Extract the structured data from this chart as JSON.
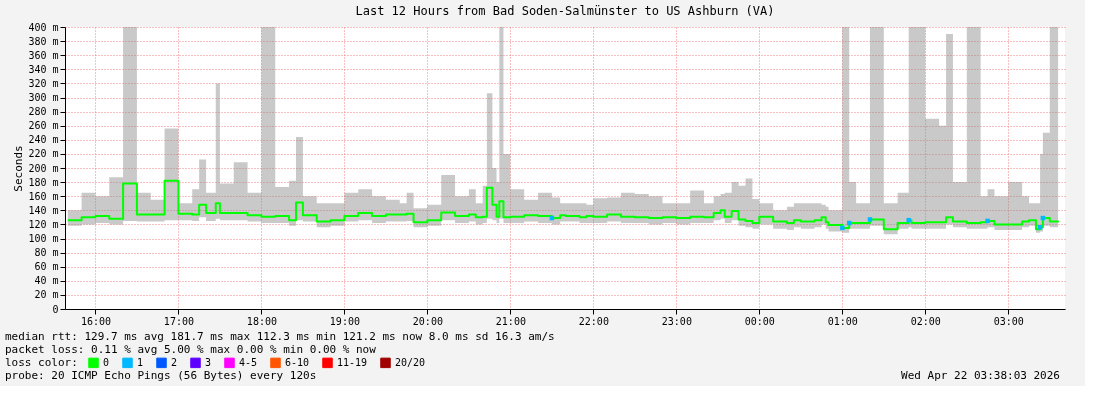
{
  "chart_data": {
    "type": "step",
    "title": "Last 12 Hours from Bad Soden-Salmünster to US Ashburn (VA)",
    "ylabel": "Seconds",
    "xlim": [
      "2026-04-21T15:38",
      "2026-04-22T03:41"
    ],
    "xticks": [
      {
        "value": "2026-04-21T16:00",
        "label": "16:00"
      },
      {
        "value": "2026-04-21T17:00",
        "label": "17:00"
      },
      {
        "value": "2026-04-21T18:00",
        "label": "18:00"
      },
      {
        "value": "2026-04-21T19:00",
        "label": "19:00"
      },
      {
        "value": "2026-04-21T20:00",
        "label": "20:00"
      },
      {
        "value": "2026-04-21T21:00",
        "label": "21:00"
      },
      {
        "value": "2026-04-21T22:00",
        "label": "22:00"
      },
      {
        "value": "2026-04-21T23:00",
        "label": "23:00"
      },
      {
        "value": "2026-04-22T00:00",
        "label": "00:00"
      },
      {
        "value": "2026-04-22T01:00",
        "label": "01:00"
      },
      {
        "value": "2026-04-22T02:00",
        "label": "02:00"
      },
      {
        "value": "2026-04-22T03:00",
        "label": "03:00"
      }
    ],
    "ylim": [
      0,
      400
    ],
    "yticks": [
      0,
      {
        "value": 20,
        "label": "20 m"
      },
      {
        "value": 40,
        "label": "40 m"
      },
      {
        "value": 60,
        "label": "60 m"
      },
      {
        "value": 80,
        "label": "80 m"
      },
      {
        "value": 100,
        "label": "100 m"
      },
      {
        "value": 120,
        "label": "120 m"
      },
      {
        "value": 140,
        "label": "140 m"
      },
      {
        "value": 160,
        "label": "160 m"
      },
      {
        "value": 180,
        "label": "180 m"
      },
      {
        "value": 200,
        "label": "200 m"
      },
      {
        "value": 220,
        "label": "220 m"
      },
      {
        "value": 240,
        "label": "240 m"
      },
      {
        "value": 260,
        "label": "260 m"
      },
      {
        "value": 280,
        "label": "280 m"
      },
      {
        "value": 300,
        "label": "300 m"
      },
      {
        "value": 320,
        "label": "320 m"
      },
      {
        "value": 340,
        "label": "340 m"
      },
      {
        "value": 360,
        "label": "360 m"
      },
      {
        "value": 380,
        "label": "380 m"
      },
      {
        "value": 400,
        "label": "400 m"
      }
    ],
    "grid": true,
    "legend": "bottom",
    "legend_title": "loss color:",
    "series": [
      {
        "name": "0",
        "color": "#00ff00",
        "x": [
          "2026-04-21T15:40",
          "2026-04-21T15:50",
          "2026-04-21T16:00",
          "2026-04-21T16:10",
          "2026-04-21T16:20",
          "2026-04-21T16:30",
          "2026-04-21T16:40",
          "2026-04-21T16:50",
          "2026-04-21T17:00",
          "2026-04-21T17:10",
          "2026-04-21T17:15",
          "2026-04-21T17:20",
          "2026-04-21T17:27",
          "2026-04-21T17:30",
          "2026-04-21T17:40",
          "2026-04-21T17:50",
          "2026-04-21T18:00",
          "2026-04-21T18:10",
          "2026-04-21T18:20",
          "2026-04-21T18:25",
          "2026-04-21T18:30",
          "2026-04-21T18:40",
          "2026-04-21T18:50",
          "2026-04-21T19:00",
          "2026-04-21T19:10",
          "2026-04-21T19:20",
          "2026-04-21T19:30",
          "2026-04-21T19:40",
          "2026-04-21T19:45",
          "2026-04-21T19:50",
          "2026-04-21T20:00",
          "2026-04-21T20:10",
          "2026-04-21T20:20",
          "2026-04-21T20:30",
          "2026-04-21T20:35",
          "2026-04-21T20:40",
          "2026-04-21T20:43",
          "2026-04-21T20:47",
          "2026-04-21T20:50",
          "2026-04-21T20:52",
          "2026-04-21T20:55",
          "2026-04-21T21:00",
          "2026-04-21T21:10",
          "2026-04-21T21:20",
          "2026-04-21T21:30",
          "2026-04-21T21:36",
          "2026-04-21T21:40",
          "2026-04-21T21:50",
          "2026-04-21T21:55",
          "2026-04-21T22:00",
          "2026-04-21T22:10",
          "2026-04-21T22:20",
          "2026-04-21T22:30",
          "2026-04-21T22:40",
          "2026-04-21T22:50",
          "2026-04-21T23:00",
          "2026-04-21T23:10",
          "2026-04-21T23:20",
          "2026-04-21T23:27",
          "2026-04-21T23:32",
          "2026-04-21T23:35",
          "2026-04-21T23:40",
          "2026-04-21T23:45",
          "2026-04-21T23:50",
          "2026-04-21T23:55",
          "2026-04-22T00:00",
          "2026-04-22T00:10",
          "2026-04-22T00:20",
          "2026-04-22T00:25",
          "2026-04-22T00:30",
          "2026-04-22T00:40",
          "2026-04-22T00:45",
          "2026-04-22T00:48",
          "2026-04-22T00:50",
          "2026-04-22T01:00",
          "2026-04-22T01:05",
          "2026-04-22T01:10",
          "2026-04-22T01:20",
          "2026-04-22T01:30",
          "2026-04-22T01:40",
          "2026-04-22T01:48",
          "2026-04-22T01:50",
          "2026-04-22T02:00",
          "2026-04-22T02:10",
          "2026-04-22T02:15",
          "2026-04-22T02:20",
          "2026-04-22T02:30",
          "2026-04-22T02:40",
          "2026-04-22T02:45",
          "2026-04-22T02:50",
          "2026-04-22T03:00",
          "2026-04-22T03:10",
          "2026-04-22T03:15",
          "2026-04-22T03:20",
          "2026-04-22T03:23",
          "2026-04-22T03:25",
          "2026-04-22T03:30",
          "2026-04-22T03:36"
        ],
        "values": [
          126,
          130,
          132,
          128,
          178,
          134,
          134,
          182,
          135,
          134,
          148,
          136,
          150,
          136,
          136,
          133,
          131,
          132,
          126,
          151,
          133,
          124,
          126,
          132,
          136,
          132,
          134,
          134,
          135,
          123,
          126,
          137,
          132,
          134,
          130,
          131,
          172,
          148,
          131,
          153,
          130,
          131,
          133,
          132,
          129,
          133,
          132,
          130,
          132,
          131,
          134,
          131,
          130,
          129,
          130,
          129,
          131,
          130,
          136,
          140,
          131,
          139,
          127,
          125,
          122,
          131,
          124,
          122,
          126,
          124,
          126,
          130,
          123,
          119,
          115,
          122,
          122,
          127,
          113,
          122,
          126,
          122,
          123,
          123,
          130,
          124,
          122,
          123,
          125,
          120,
          120,
          124,
          126,
          113,
          116,
          129,
          124,
          123
        ],
        "lower": [
          118,
          120,
          122,
          120,
          125,
          124,
          124,
          126,
          126,
          125,
          130,
          125,
          128,
          126,
          126,
          124,
          122,
          122,
          118,
          126,
          124,
          116,
          118,
          124,
          126,
          122,
          124,
          124,
          125,
          116,
          118,
          126,
          122,
          124,
          120,
          122,
          128,
          126,
          122,
          128,
          122,
          122,
          124,
          122,
          120,
          124,
          124,
          122,
          122,
          122,
          124,
          122,
          122,
          120,
          122,
          120,
          122,
          122,
          126,
          128,
          122,
          126,
          118,
          116,
          114,
          120,
          114,
          112,
          116,
          114,
          116,
          120,
          114,
          110,
          108,
          114,
          114,
          118,
          106,
          114,
          116,
          114,
          114,
          114,
          120,
          116,
          114,
          114,
          116,
          112,
          112,
          116,
          118,
          108,
          110,
          118,
          116,
          116
        ],
        "upper": [
          140,
          165,
          160,
          187,
          400,
          165,
          155,
          256,
          150,
          170,
          212,
          165,
          320,
          178,
          208,
          165,
          400,
          173,
          182,
          244,
          160,
          150,
          150,
          165,
          170,
          160,
          155,
          150,
          165,
          143,
          148,
          190,
          160,
          170,
          150,
          175,
          306,
          200,
          180,
          400,
          220,
          170,
          155,
          165,
          158,
          150,
          150,
          150,
          148,
          157,
          158,
          165,
          163,
          160,
          150,
          150,
          168,
          150,
          160,
          163,
          165,
          180,
          175,
          185,
          156,
          150,
          140,
          145,
          150,
          150,
          150,
          148,
          145,
          140,
          400,
          180,
          150,
          400,
          150,
          165,
          400,
          400,
          270,
          260,
          390,
          180,
          400,
          160,
          170,
          160,
          180,
          160,
          150,
          150,
          220,
          250,
          400,
          230
        ]
      },
      {
        "name": "1",
        "color": "#00b8ff",
        "type": "scatter",
        "x": [
          "2026-04-21T21:30",
          "2026-04-22T01:00",
          "2026-04-22T01:05",
          "2026-04-22T01:20",
          "2026-04-22T01:48",
          "2026-04-22T02:45",
          "2026-04-22T03:23",
          "2026-04-22T03:25"
        ],
        "values": [
          129,
          115,
          122,
          127,
          126,
          125,
          116,
          129
        ]
      },
      {
        "name": "2",
        "color": "#0059ff",
        "type": "scatter"
      },
      {
        "name": "3",
        "color": "#5e00ff",
        "type": "scatter"
      },
      {
        "name": "4-5",
        "color": "#ff00ff",
        "type": "scatter"
      },
      {
        "name": "6-10",
        "color": "#ff5500",
        "type": "scatter"
      },
      {
        "name": "11-19",
        "color": "#ff0000",
        "type": "scatter"
      },
      {
        "name": "20/20",
        "color": "#a10000",
        "type": "scatter"
      }
    ],
    "annotations": [
      "median rtt:  129.7 ms avg  181.7 ms max  112.3 ms min  121.2 ms now  8.0 ms sd  16.3   am/s",
      "packet loss: 0.11 % avg  5.00 % max  0.00 % min  0.00 % now",
      "probe:       20 ICMP Echo Pings (56 Bytes) every 120s",
      "Wed Apr 22 03:38:03 2026"
    ]
  }
}
